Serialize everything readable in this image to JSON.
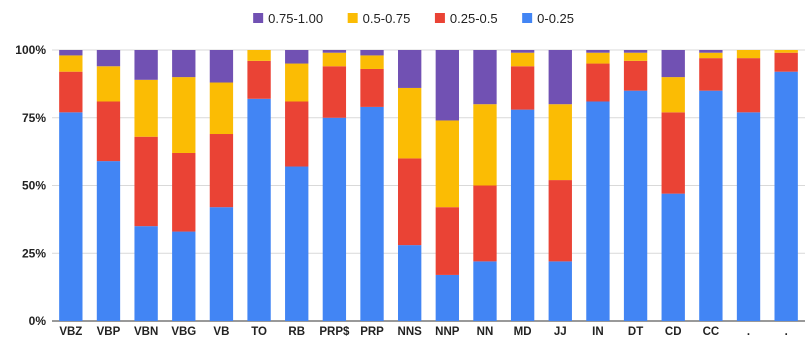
{
  "chart_data": {
    "type": "bar",
    "stacked": true,
    "percent_stacked": true,
    "title": "",
    "xlabel": "",
    "ylabel": "",
    "ylim": [
      0,
      100
    ],
    "yticks": [
      "0%",
      "25%",
      "50%",
      "75%",
      "100%"
    ],
    "ytick_values": [
      0,
      25,
      50,
      75,
      100
    ],
    "grid": true,
    "legend_position": "top",
    "categories": [
      "VBZ",
      "VBP",
      "VBN",
      "VBG",
      "VB",
      "TO",
      "RB",
      "PRP$",
      "PRP",
      "NNS",
      "NNP",
      "NN",
      "MD",
      "JJ",
      "IN",
      "DT",
      "CD",
      "CC",
      ".",
      "."
    ],
    "series": [
      {
        "name": "0-0.25",
        "color": "#4285f4",
        "values": [
          77,
          59,
          35,
          33,
          42,
          82,
          57,
          75,
          79,
          28,
          17,
          22,
          78,
          22,
          81,
          85,
          47,
          85,
          77,
          92
        ]
      },
      {
        "name": "0.25-0.5",
        "color": "#ea4335",
        "values": [
          15,
          22,
          33,
          29,
          27,
          14,
          24,
          19,
          14,
          32,
          25,
          28,
          16,
          30,
          14,
          11,
          30,
          12,
          20,
          7
        ]
      },
      {
        "name": "0.5-0.75",
        "color": "#fbbc04",
        "values": [
          6,
          13,
          21,
          28,
          19,
          4,
          14,
          5,
          5,
          26,
          32,
          30,
          5,
          28,
          4,
          3,
          13,
          2,
          3,
          1
        ]
      },
      {
        "name": "0.75-1.00",
        "color": "#7151b3",
        "values": [
          2,
          6,
          11,
          10,
          12,
          0,
          5,
          1,
          2,
          14,
          26,
          20,
          1,
          20,
          1,
          1,
          10,
          1,
          0,
          0
        ]
      }
    ],
    "legend_order": [
      "0.75-1.00",
      "0.5-0.75",
      "0.25-0.5",
      "0-0.25"
    ]
  }
}
